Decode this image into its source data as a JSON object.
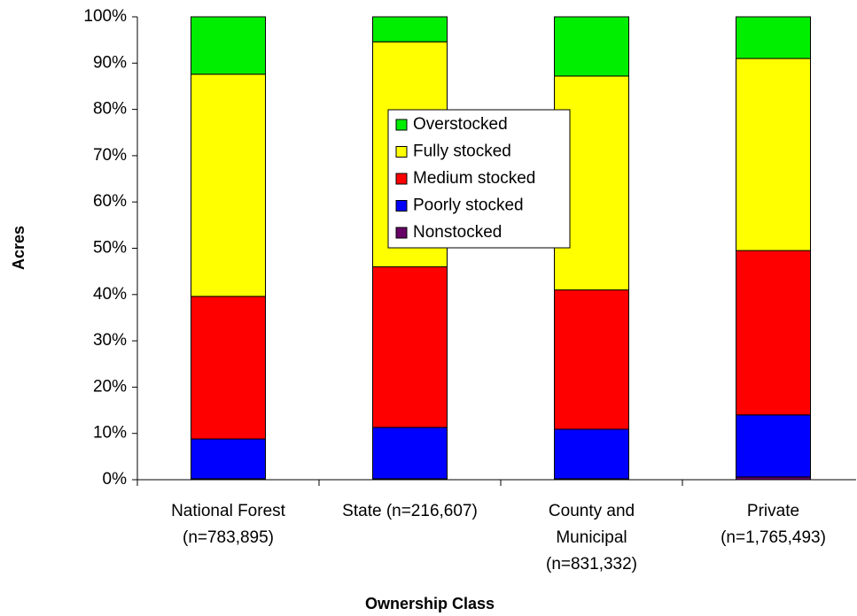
{
  "chart_data": {
    "type": "stacked_bar_100",
    "x_label": "Ownership Class",
    "y_label": "Acres",
    "categories": [
      [
        "National Forest",
        "(n=783,895)"
      ],
      [
        "State (n=216,607)"
      ],
      [
        "County and",
        "Municipal",
        "(n=831,332)"
      ],
      [
        "Private",
        "(n=1,765,493)"
      ]
    ],
    "series": [
      {
        "name": "Nonstocked",
        "color": "#660066",
        "values": [
          0.2,
          0.2,
          0.2,
          0.6
        ]
      },
      {
        "name": "Poorly stocked",
        "color": "#0000ff",
        "values": [
          8.6,
          11.1,
          10.7,
          13.4
        ]
      },
      {
        "name": "Medium stocked",
        "color": "#ff0000",
        "values": [
          30.8,
          34.7,
          30.1,
          35.5
        ]
      },
      {
        "name": "Fully stocked",
        "color": "#ffff00",
        "values": [
          48.0,
          48.6,
          46.2,
          41.5
        ]
      },
      {
        "name": "Overstocked",
        "color": "#00ee00",
        "values": [
          12.4,
          5.4,
          12.8,
          9.0
        ]
      }
    ],
    "ylim": [
      0,
      100
    ],
    "yticks": [
      {
        "value": 0,
        "label": "0%"
      },
      {
        "value": 10,
        "label": "10%"
      },
      {
        "value": 20,
        "label": "20%"
      },
      {
        "value": 30,
        "label": "30%"
      },
      {
        "value": 40,
        "label": "40%"
      },
      {
        "value": 50,
        "label": "50%"
      },
      {
        "value": 60,
        "label": "60%"
      },
      {
        "value": 70,
        "label": "70%"
      },
      {
        "value": 80,
        "label": "80%"
      },
      {
        "value": 90,
        "label": "90%"
      },
      {
        "value": 100,
        "label": "100%"
      }
    ]
  }
}
